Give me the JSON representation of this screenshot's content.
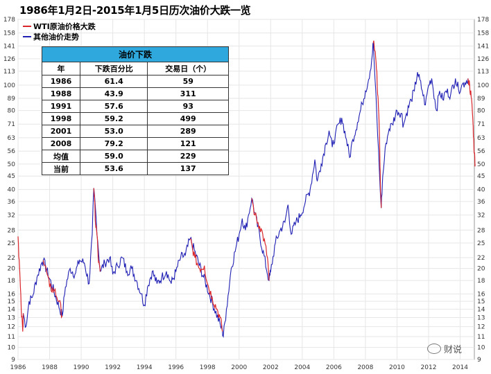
{
  "title": "1986年1月2日-2015年1月5日历次油价大跌一览",
  "watermark": "财说",
  "colors": {
    "crash": "#d9262b",
    "normal": "#1f1fb4",
    "table_header": "#2fa8de",
    "grid": "#e6e6e6"
  },
  "chart_data": {
    "type": "line",
    "title": "1986年1月2日-2015年1月5日历次油价大跌一览",
    "y_scale": "log",
    "ylim": [
      9,
      178
    ],
    "xlim": [
      1986,
      2014.9
    ],
    "y_ticks": [
      9,
      10,
      11,
      12,
      13,
      14,
      15,
      16,
      18,
      20,
      22,
      25,
      28,
      32,
      36,
      40,
      45,
      50,
      56,
      63,
      71,
      80,
      89,
      100,
      113,
      126,
      141,
      158,
      178
    ],
    "x_ticks": [
      1986,
      1988,
      1990,
      1992,
      1994,
      1996,
      1998,
      2000,
      2002,
      2004,
      2006,
      2008,
      2010,
      2012,
      2014
    ],
    "grid": true,
    "legend": {
      "position": "top-left"
    },
    "series": [
      {
        "name": "WTI原油价格大跌",
        "color": "#d9262b",
        "segments": [
          [
            [
              1986.0,
              26.5
            ],
            [
              1986.1,
              20
            ],
            [
              1986.2,
              14
            ],
            [
              1986.3,
              11.5
            ],
            [
              1986.33,
              13.5
            ]
          ],
          [
            [
              1987.6,
              21.5
            ],
            [
              1987.8,
              19.5
            ],
            [
              1988.0,
              17
            ],
            [
              1988.3,
              16.5
            ],
            [
              1988.6,
              15
            ],
            [
              1988.8,
              13.2
            ]
          ],
          [
            [
              1990.8,
              40.5
            ],
            [
              1990.85,
              36
            ],
            [
              1990.9,
              30
            ],
            [
              1991.0,
              27
            ],
            [
              1991.1,
              21
            ],
            [
              1991.2,
              19.5
            ]
          ],
          [
            [
              1996.9,
              26
            ],
            [
              1997.2,
              22
            ],
            [
              1997.5,
              20
            ],
            [
              1997.8,
              20.5
            ],
            [
              1998.0,
              17.5
            ],
            [
              1998.3,
              15.5
            ],
            [
              1998.6,
              14
            ],
            [
              1998.8,
              13
            ],
            [
              1998.95,
              11.5
            ]
          ],
          [
            [
              2000.8,
              37
            ],
            [
              2001.0,
              32
            ],
            [
              2001.3,
              29
            ],
            [
              2001.5,
              27
            ],
            [
              2001.8,
              22
            ],
            [
              2001.9,
              18
            ]
          ],
          [
            [
              2008.5,
              145
            ],
            [
              2008.6,
              135
            ],
            [
              2008.7,
              115
            ],
            [
              2008.8,
              90
            ],
            [
              2008.9,
              60
            ],
            [
              2008.95,
              42
            ],
            [
              2009.0,
              34
            ]
          ],
          [
            [
              2014.5,
              106
            ],
            [
              2014.6,
              100
            ],
            [
              2014.7,
              90
            ],
            [
              2014.8,
              75
            ],
            [
              2014.85,
              63
            ],
            [
              2014.9,
              55
            ],
            [
              2014.95,
              50
            ]
          ]
        ]
      },
      {
        "name": "其他油价走势",
        "color": "#1f1fb4",
        "points": [
          [
            1986.33,
            13.5
          ],
          [
            1986.5,
            12
          ],
          [
            1986.7,
            15
          ],
          [
            1986.9,
            15.5
          ],
          [
            1987.2,
            18.5
          ],
          [
            1987.5,
            21
          ],
          [
            1987.6,
            21.5
          ],
          [
            1988.8,
            13.2
          ],
          [
            1989.0,
            17
          ],
          [
            1989.3,
            20
          ],
          [
            1989.6,
            19
          ],
          [
            1989.9,
            21.5
          ],
          [
            1990.2,
            21
          ],
          [
            1990.5,
            17.5
          ],
          [
            1990.7,
            27
          ],
          [
            1990.8,
            40.5
          ],
          [
            1991.2,
            19.5
          ],
          [
            1991.5,
            21
          ],
          [
            1991.8,
            22
          ],
          [
            1992.0,
            19
          ],
          [
            1992.3,
            20.5
          ],
          [
            1992.6,
            22
          ],
          [
            1992.9,
            19.5
          ],
          [
            1993.2,
            20
          ],
          [
            1993.5,
            18
          ],
          [
            1993.8,
            16
          ],
          [
            1994.0,
            14.5
          ],
          [
            1994.2,
            17
          ],
          [
            1994.5,
            19.5
          ],
          [
            1994.8,
            17.5
          ],
          [
            1995.1,
            18.5
          ],
          [
            1995.4,
            19.5
          ],
          [
            1995.7,
            17.5
          ],
          [
            1996.0,
            19.5
          ],
          [
            1996.3,
            22
          ],
          [
            1996.6,
            22.5
          ],
          [
            1996.9,
            26
          ],
          [
            1998.95,
            11.5
          ],
          [
            1999.0,
            11
          ],
          [
            1999.2,
            14
          ],
          [
            1999.5,
            20
          ],
          [
            1999.8,
            24
          ],
          [
            2000.0,
            27
          ],
          [
            2000.2,
            31
          ],
          [
            2000.4,
            28
          ],
          [
            2000.6,
            32
          ],
          [
            2000.8,
            37
          ],
          [
            2001.9,
            18
          ],
          [
            2002.0,
            19.5
          ],
          [
            2002.3,
            25
          ],
          [
            2002.6,
            28
          ],
          [
            2002.9,
            30
          ],
          [
            2003.1,
            35
          ],
          [
            2003.3,
            27
          ],
          [
            2003.6,
            30
          ],
          [
            2003.9,
            32
          ],
          [
            2004.2,
            36
          ],
          [
            2004.5,
            40
          ],
          [
            2004.8,
            52
          ],
          [
            2004.95,
            43
          ],
          [
            2005.2,
            50
          ],
          [
            2005.5,
            60
          ],
          [
            2005.7,
            67
          ],
          [
            2005.9,
            58
          ],
          [
            2006.1,
            65
          ],
          [
            2006.5,
            75
          ],
          [
            2006.8,
            62
          ],
          [
            2007.0,
            53
          ],
          [
            2007.2,
            62
          ],
          [
            2007.5,
            72
          ],
          [
            2007.8,
            85
          ],
          [
            2008.0,
            95
          ],
          [
            2008.2,
            105
          ],
          [
            2008.4,
            125
          ],
          [
            2008.5,
            145
          ],
          [
            2009.0,
            34
          ],
          [
            2009.1,
            45
          ],
          [
            2009.3,
            60
          ],
          [
            2009.5,
            68
          ],
          [
            2009.7,
            71
          ],
          [
            2010.0,
            80
          ],
          [
            2010.3,
            78
          ],
          [
            2010.4,
            70
          ],
          [
            2010.6,
            78
          ],
          [
            2010.9,
            88
          ],
          [
            2011.1,
            95
          ],
          [
            2011.3,
            112
          ],
          [
            2011.6,
            95
          ],
          [
            2011.8,
            84
          ],
          [
            2012.0,
            100
          ],
          [
            2012.2,
            106
          ],
          [
            2012.5,
            80
          ],
          [
            2012.7,
            95
          ],
          [
            2012.9,
            88
          ],
          [
            2013.1,
            95
          ],
          [
            2013.4,
            92
          ],
          [
            2013.7,
            106
          ],
          [
            2013.9,
            96
          ],
          [
            2014.1,
            100
          ],
          [
            2014.3,
            102
          ],
          [
            2014.5,
            106
          ]
        ]
      }
    ]
  },
  "table": {
    "title": "油价下跌",
    "headers": [
      "年",
      "下跌百分比",
      "交易日（个）"
    ],
    "rows": [
      [
        "1986",
        "61.4",
        "59"
      ],
      [
        "1988",
        "43.9",
        "311"
      ],
      [
        "1991",
        "57.6",
        "93"
      ],
      [
        "1998",
        "59.2",
        "499"
      ],
      [
        "2001",
        "53.0",
        "289"
      ],
      [
        "2008",
        "79.2",
        "121"
      ],
      [
        "均值",
        "59.0",
        "229"
      ],
      [
        "当前",
        "53.6",
        "137"
      ]
    ]
  }
}
